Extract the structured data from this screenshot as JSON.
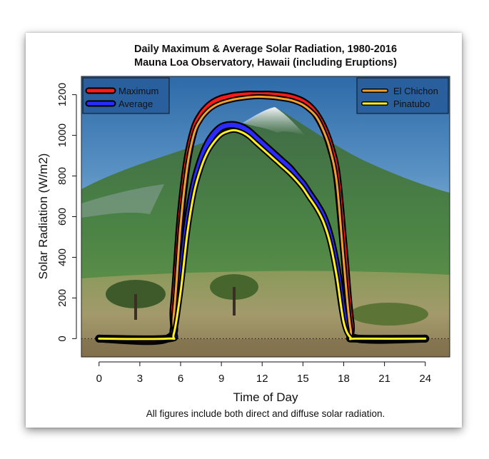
{
  "chart_data": {
    "type": "line",
    "title": "Daily Maximum & Average Solar Radiation, 1980-2016",
    "subtitle": "Mauna Loa Observatory, Hawaii (including Eruptions)",
    "xlabel": "Time of Day",
    "ylabel": "Solar Radiation (W/m2)",
    "caption": "All figures include both direct and diffuse solar radiation.",
    "xlim": [
      -1.3,
      25.8
    ],
    "ylim": [
      -90,
      1290
    ],
    "x_ticks": [
      0,
      3,
      6,
      9,
      12,
      15,
      18,
      21,
      24
    ],
    "y_ticks": [
      0,
      200,
      400,
      600,
      800,
      1000,
      1200
    ],
    "background": "photo of a green volcanic mountain under a blue sky",
    "zero_line": "dotted",
    "x": [
      0,
      5,
      5.5,
      6,
      6.5,
      7,
      7.5,
      8,
      8.5,
      9,
      9.5,
      10,
      10.5,
      11,
      11.5,
      12,
      12.5,
      13,
      13.5,
      14,
      14.5,
      15,
      15.5,
      16,
      16.5,
      17,
      17.5,
      18,
      18.5,
      19,
      24
    ],
    "series": [
      {
        "name": "Maximum",
        "group": "left",
        "color": "#ff1a1a",
        "values": [
          0,
          0,
          160,
          600,
          880,
          1030,
          1100,
          1140,
          1165,
          1180,
          1188,
          1195,
          1198,
          1200,
          1200,
          1200,
          1200,
          1198,
          1195,
          1190,
          1180,
          1165,
          1140,
          1100,
          1040,
          950,
          800,
          450,
          80,
          0,
          0
        ]
      },
      {
        "name": "Average",
        "group": "left",
        "color": "#2b2bff",
        "values": [
          0,
          0,
          50,
          290,
          570,
          760,
          880,
          960,
          1010,
          1040,
          1050,
          1050,
          1040,
          1020,
          990,
          960,
          930,
          900,
          870,
          840,
          800,
          760,
          710,
          660,
          600,
          500,
          340,
          120,
          15,
          0,
          0
        ]
      },
      {
        "name": "El Chichon",
        "group": "right",
        "color": "#f0a030",
        "values": [
          0,
          0,
          120,
          560,
          850,
          1010,
          1080,
          1120,
          1145,
          1160,
          1170,
          1178,
          1183,
          1187,
          1190,
          1190,
          1188,
          1185,
          1180,
          1175,
          1165,
          1150,
          1125,
          1090,
          1025,
          930,
          760,
          380,
          50,
          0,
          0
        ]
      },
      {
        "name": "Pinatubo",
        "group": "right",
        "color": "#ffee22",
        "values": [
          0,
          0,
          25,
          230,
          520,
          720,
          840,
          920,
          970,
          1005,
          1020,
          1025,
          1015,
          995,
          965,
          935,
          905,
          875,
          845,
          815,
          780,
          740,
          690,
          640,
          575,
          470,
          300,
          80,
          5,
          0,
          0
        ]
      }
    ],
    "legend": [
      {
        "position": "top-left",
        "entries": [
          "Maximum",
          "Average"
        ]
      },
      {
        "position": "top-right",
        "entries": [
          "El Chichon",
          "Pinatubo"
        ]
      }
    ]
  }
}
